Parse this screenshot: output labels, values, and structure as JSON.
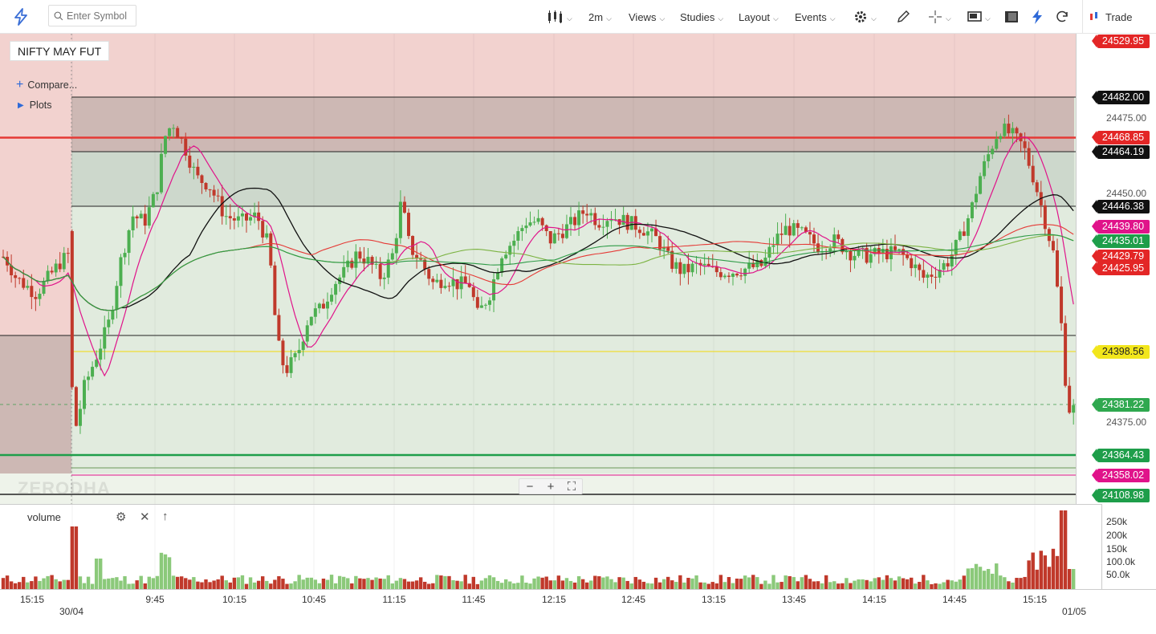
{
  "toolbar": {
    "search_placeholder": "Enter Symbol",
    "interval": "2m",
    "views": "Views",
    "studies": "Studies",
    "layout": "Layout",
    "events": "Events",
    "trade": "Trade"
  },
  "chart": {
    "symbol": "NIFTY MAY FUT",
    "compare": "Compare...",
    "plots": "Plots",
    "watermark": "ZERODHA",
    "price_ticks": [
      "24475.00",
      "24450.00",
      "24375.00"
    ],
    "price_tags": [
      {
        "value": "24529.95",
        "color": "#e32626"
      },
      {
        "value": "24482.00",
        "color": "#111111"
      },
      {
        "value": "24468.85",
        "color": "#e32626"
      },
      {
        "value": "24464.19",
        "color": "#111111"
      },
      {
        "value": "24446.38",
        "color": "#111111"
      },
      {
        "value": "24439.80",
        "color": "#e0138a"
      },
      {
        "value": "24435.01",
        "color": "#1e9e4a"
      },
      {
        "value": "24429.79",
        "color": "#e32626"
      },
      {
        "value": "24425.95",
        "color": "#e32626"
      },
      {
        "value": "24398.56",
        "color": "#f2e61c"
      },
      {
        "value": "24381.22",
        "color": "#2fa84f"
      },
      {
        "value": "24364.43",
        "color": "#1e9e4a"
      },
      {
        "value": "24358.02",
        "color": "#e0138a"
      },
      {
        "value": "24108.98",
        "color": "#1e9e4a"
      }
    ],
    "volume_label": "volume",
    "volume_ticks": [
      "250k",
      "200k",
      "150k",
      "100.0k",
      "50.0k"
    ],
    "time_labels": [
      "15:15",
      "9:45",
      "10:15",
      "10:45",
      "11:15",
      "11:45",
      "12:15",
      "12:45",
      "13:15",
      "13:45",
      "14:15",
      "14:45",
      "15:15"
    ],
    "date_labels": [
      "30/04",
      "01/05"
    ],
    "colors": {
      "up": "#4caf50",
      "down": "#c0392b",
      "zone_red": "#f2d2cf",
      "zone_dark": "#cdb8b4",
      "zone_gray": "#cdd8cc",
      "zone_green": "#e1ebde"
    }
  }
}
